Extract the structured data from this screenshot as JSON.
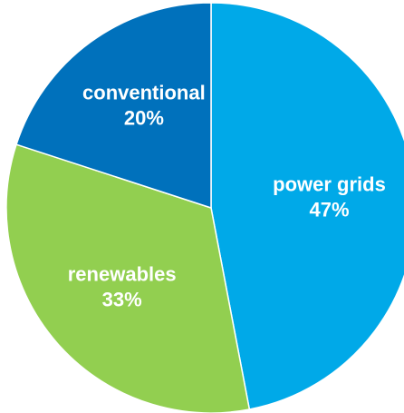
{
  "chart_data": {
    "type": "pie",
    "title": "",
    "slices": [
      {
        "label": "power grids",
        "value": 47,
        "display": "47%",
        "color": "#00a9e8"
      },
      {
        "label": "renewables",
        "value": 33,
        "display": "33%",
        "color": "#92cf50"
      },
      {
        "label": "conventional",
        "value": 20,
        "display": "20%",
        "color": "#0071bc"
      }
    ],
    "start_position": "top",
    "direction": "clockwise",
    "legend": "none"
  }
}
